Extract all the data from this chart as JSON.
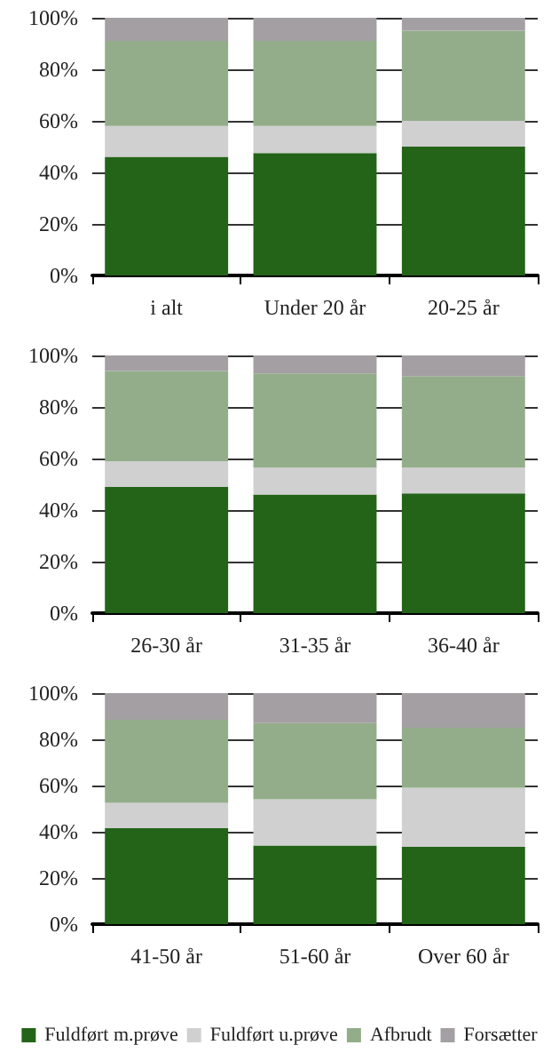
{
  "chart_data": [
    {
      "type": "bar",
      "stacked": true,
      "categories": [
        "i alt",
        "Under 20 år",
        "20-25 år"
      ],
      "ylim": [
        0,
        100
      ],
      "yticks": [
        {
          "value": 0,
          "label": "0%"
        },
        {
          "value": 20,
          "label": "20%"
        },
        {
          "value": 40,
          "label": "40%"
        },
        {
          "value": 60,
          "label": "60%"
        },
        {
          "value": 80,
          "label": "80%"
        },
        {
          "value": 100,
          "label": "100%"
        }
      ],
      "grid": "y",
      "legend": false,
      "series": [
        {
          "color": "#246419",
          "values": [
            46,
            47.5,
            50
          ]
        },
        {
          "color": "#d0d0d0",
          "values": [
            12,
            10.5,
            10
          ]
        },
        {
          "color": "#93ad8a",
          "values": [
            33,
            33,
            35
          ]
        },
        {
          "color": "#a39fa2",
          "values": [
            9,
            9,
            5
          ]
        }
      ]
    },
    {
      "type": "bar",
      "stacked": true,
      "categories": [
        "26-30 år",
        "31-35 år",
        "36-40 år"
      ],
      "ylim": [
        0,
        100
      ],
      "yticks": [
        {
          "value": 0,
          "label": "0%"
        },
        {
          "value": 20,
          "label": "20%"
        },
        {
          "value": 40,
          "label": "40%"
        },
        {
          "value": 60,
          "label": "60%"
        },
        {
          "value": 80,
          "label": "80%"
        },
        {
          "value": 100,
          "label": "100%"
        }
      ],
      "grid": "y",
      "legend": false,
      "series": [
        {
          "color": "#246419",
          "values": [
            49,
            46,
            46.5
          ]
        },
        {
          "color": "#d0d0d0",
          "values": [
            10,
            10.5,
            10
          ]
        },
        {
          "color": "#93ad8a",
          "values": [
            35,
            36.5,
            35.5
          ]
        },
        {
          "color": "#a39fa2",
          "values": [
            6,
            7,
            8
          ]
        }
      ]
    },
    {
      "type": "bar",
      "stacked": true,
      "categories": [
        "41-50 år",
        "51-60 år",
        "Over 60 år"
      ],
      "ylim": [
        0,
        100
      ],
      "yticks": [
        {
          "value": 0,
          "label": "0%"
        },
        {
          "value": 20,
          "label": "20%"
        },
        {
          "value": 40,
          "label": "40%"
        },
        {
          "value": 60,
          "label": "60%"
        },
        {
          "value": 80,
          "label": "80%"
        },
        {
          "value": 100,
          "label": "100%"
        }
      ],
      "grid": "y",
      "legend": "bottom",
      "series": [
        {
          "name": "Fuldført m.prøve",
          "color": "#246419",
          "values": [
            41.5,
            34,
            33.5
          ]
        },
        {
          "name": "Fuldført u.prøve",
          "color": "#d0d0d0",
          "values": [
            11,
            20,
            25.5
          ]
        },
        {
          "name": "Afbrudt",
          "color": "#93ad8a",
          "values": [
            36,
            33,
            26
          ]
        },
        {
          "name": "Forsætter",
          "color": "#a39fa2",
          "values": [
            11.5,
            13,
            15
          ]
        }
      ]
    }
  ]
}
